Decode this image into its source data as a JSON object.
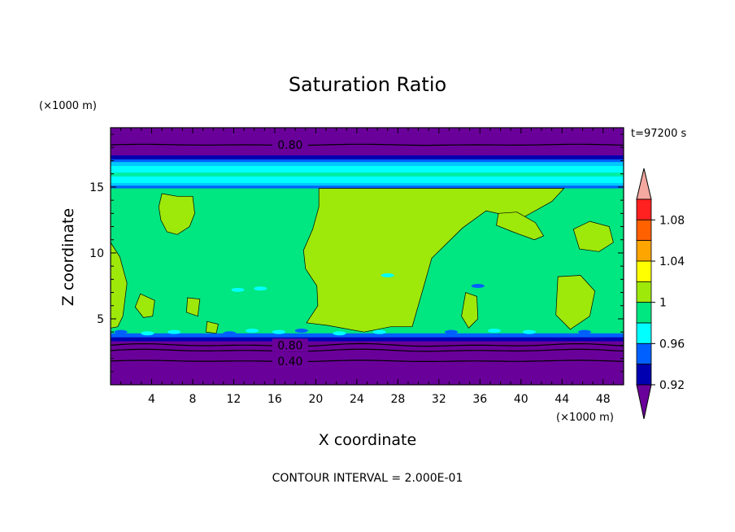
{
  "chart_data": {
    "type": "heatmap",
    "title": "Saturation Ratio",
    "xlabel": "X coordinate",
    "ylabel": "Z coordinate",
    "x_unit": "(×1000 m)",
    "y_unit": "(×1000 m)",
    "time_label": "t=97200 s",
    "footer": "CONTOUR INTERVAL = 2.000E-01",
    "xlim": [
      0,
      50
    ],
    "ylim": [
      0,
      19.5
    ],
    "x_ticks": [
      4,
      8,
      12,
      16,
      20,
      24,
      28,
      32,
      36,
      40,
      44,
      48
    ],
    "y_ticks": [
      5,
      10,
      15
    ],
    "contour_labels": [
      {
        "text": "0.80",
        "x": 17.5,
        "y": 18.2
      },
      {
        "text": "0.80",
        "x": 17.5,
        "y": 3.0
      },
      {
        "text": "0.40",
        "x": 17.5,
        "y": 1.8
      }
    ],
    "layers": [
      {
        "z_range": [
          0,
          3.3
        ],
        "level": "<0.92"
      },
      {
        "z_range": [
          3.3,
          3.6
        ],
        "level": "0.92-0.96"
      },
      {
        "z_range": [
          3.6,
          14.9
        ],
        "level": "0.98-1.02"
      },
      {
        "z_range": [
          14.9,
          17.0
        ],
        "level": "0.96-0.98"
      },
      {
        "z_range": [
          17.0,
          19.5
        ],
        "level": "<0.92"
      }
    ],
    "colorbar": {
      "labels": [
        "1.08",
        "1.04",
        "1",
        "0.96",
        "0.92"
      ],
      "colors": [
        "#f4a8a0",
        "#ff2020",
        "#ff6000",
        "#ffa500",
        "#ffff00",
        "#9ee80a",
        "#00e680",
        "#00ffff",
        "#0060ff",
        "#0000b0",
        "#6a009a"
      ]
    },
    "colors": {
      "purple": "#6a009a",
      "dark_blue": "#0000b0",
      "blue": "#0060ff",
      "cyan": "#00ffff",
      "green": "#00e680",
      "lime": "#9ee80a"
    }
  }
}
